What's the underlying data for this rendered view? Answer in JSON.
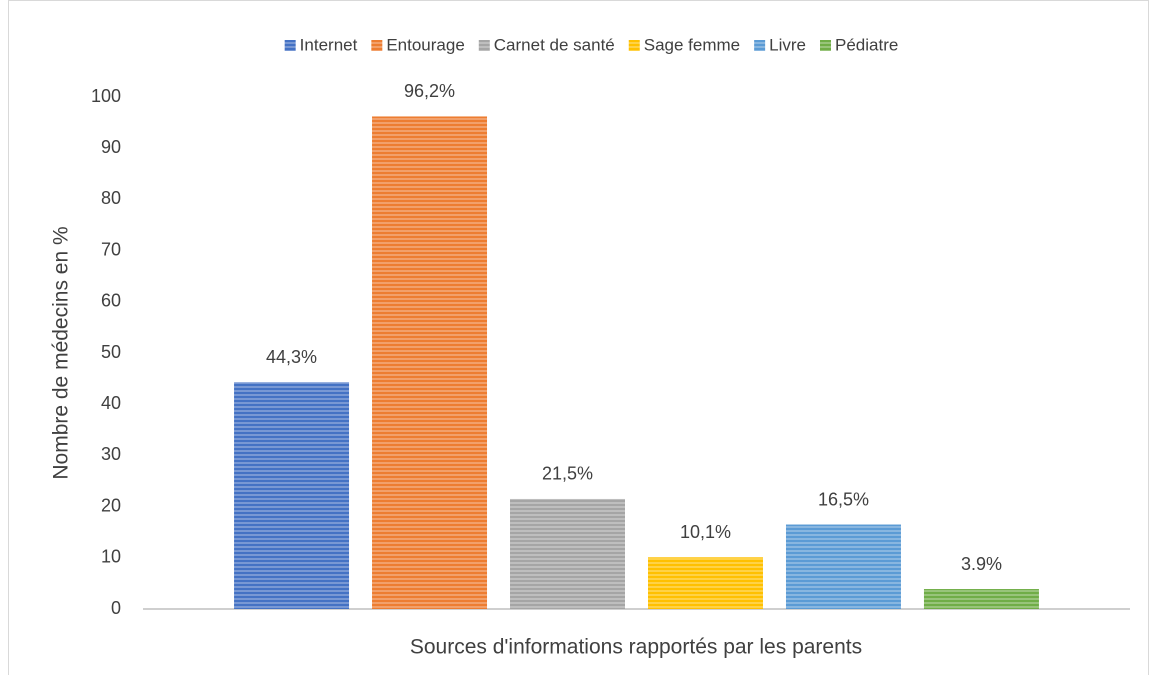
{
  "chart_data": {
    "type": "bar",
    "x_label": "Sources d'informations rapportés par les parents",
    "y_label": "Nombre de médecins en %",
    "categories": [
      null
    ],
    "series": [
      {
        "name": "Internet",
        "color": "#4472c4",
        "values": [
          44.3
        ],
        "value_labels": [
          "44,3%"
        ]
      },
      {
        "name": "Entourage",
        "color": "#ed7d31",
        "values": [
          96.2
        ],
        "value_labels": [
          "96,2%"
        ]
      },
      {
        "name": "Carnet de santé",
        "color": "#a5a5a5",
        "values": [
          21.5
        ],
        "value_labels": [
          "21,5%"
        ]
      },
      {
        "name": "Sage femme",
        "color": "#ffc000",
        "values": [
          10.1
        ],
        "value_labels": [
          "10,1%"
        ]
      },
      {
        "name": "Livre",
        "color": "#5b9bd5",
        "values": [
          16.5
        ],
        "value_labels": [
          "16,5%"
        ]
      },
      {
        "name": "Pédiatre",
        "color": "#70ad47",
        "values": [
          3.9
        ],
        "value_labels": [
          "3.9%"
        ]
      }
    ],
    "ylim": [
      0,
      100
    ],
    "yticks": [
      0,
      10,
      20,
      30,
      40,
      50,
      60,
      70,
      80,
      90,
      100
    ],
    "grid": false,
    "legend": "top"
  }
}
